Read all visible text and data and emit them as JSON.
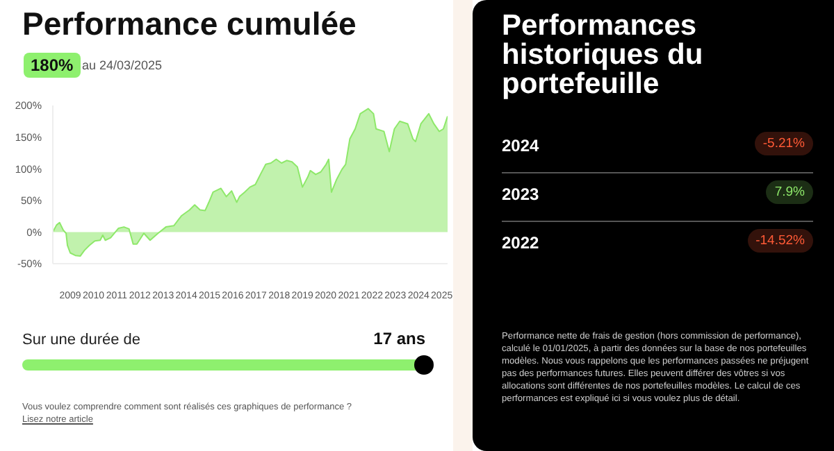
{
  "chart_data": [
    {
      "type": "area",
      "title": "Performance cumulée",
      "annotations": [
        "180%",
        "au 24/03/2025",
        "Sur une durée de",
        "17 ans",
        "Vous voulez comprendre comment sont réalisés ces graphiques de performance ?",
        "Lisez notre article"
      ],
      "x": [
        2008.25,
        2008.41,
        2008.54,
        2008.7,
        2008.82,
        2008.88,
        2009.0,
        2009.22,
        2009.43,
        2009.61,
        2009.83,
        2010.06,
        2010.29,
        2010.4,
        2010.51,
        2010.74,
        2011.08,
        2011.31,
        2011.53,
        2011.71,
        2011.87,
        2012.17,
        2012.44,
        2012.78,
        2013.12,
        2013.46,
        2013.8,
        2014.14,
        2014.36,
        2014.59,
        2014.81,
        2014.97,
        2015.15,
        2015.49,
        2015.72,
        2015.95,
        2016.17,
        2016.29,
        2016.51,
        2016.74,
        2016.97,
        2017.19,
        2017.42,
        2017.64,
        2017.87,
        2018.1,
        2018.32,
        2018.55,
        2018.78,
        2019.0,
        2019.23,
        2019.34,
        2019.57,
        2019.79,
        2020.02,
        2020.13,
        2020.25,
        2020.47,
        2020.7,
        2020.86,
        2021.04,
        2021.27,
        2021.49,
        2021.83,
        2022.06,
        2022.17,
        2022.51,
        2022.74,
        2022.96,
        2023.19,
        2023.53,
        2023.76,
        2023.87,
        2024.1,
        2024.44,
        2024.66,
        2024.89,
        2025.07,
        2025.25
      ],
      "series": [
        {
          "type": "area",
          "color": "#8ee86a",
          "values": [
            0,
            11,
            15,
            3,
            -2,
            -21,
            -33,
            -37,
            -38,
            -29,
            -21,
            -14,
            -13,
            -5,
            -13,
            -9,
            6,
            8,
            5,
            -19,
            -19,
            -2,
            -13,
            -2,
            8,
            10,
            26,
            35,
            43,
            35,
            34,
            47,
            63,
            69,
            56,
            65,
            47,
            56,
            63,
            71,
            75,
            91,
            107,
            109,
            115,
            109,
            113,
            111,
            103,
            71,
            87,
            97,
            91,
            95,
            107,
            115,
            63,
            83,
            99,
            107,
            147,
            163,
            187,
            195,
            187,
            163,
            159,
            127,
            163,
            175,
            171,
            147,
            143,
            171,
            187,
            171,
            159,
            163,
            183
          ]
        }
      ],
      "xlim": [
        2008.25,
        2025.25
      ],
      "xticks": [
        2009,
        2010,
        2011,
        2012,
        2013,
        2014,
        2015,
        2016,
        2017,
        2018,
        2019,
        2020,
        2021,
        2022,
        2023,
        2024,
        2025
      ],
      "ylim": [
        -50,
        200
      ],
      "yticks": [
        {
          "value": -50,
          "label": "-50%"
        },
        {
          "value": 0,
          "label": "0%"
        },
        {
          "value": 50,
          "label": "50%"
        },
        {
          "value": 100,
          "label": "100%"
        },
        {
          "value": 150,
          "label": "150%"
        },
        {
          "value": 200,
          "label": "200%"
        }
      ],
      "grid": false,
      "legend": false
    },
    {
      "type": "other",
      "title": "Performances historiques du portefeuille",
      "categories": [
        "2024",
        "2023",
        "2022"
      ],
      "values": [
        -5.21,
        7.9,
        -14.52
      ],
      "value_labels": [
        "-5.21%",
        "7.9%",
        "-14.52%"
      ],
      "annotations": [
        "Performance nette de frais de gestion (hors commission de performance), calculé le 01/01/2025, à partir des données sur la base de nos portefeuilles modèles. Nous vous rappelons que les performances passées ne préjugent pas des performances futures. Elles peuvent différer des vôtres si vos allocations sont différentes de nos portefeuilles modèles. Le calcul de ces performances est expliqué ici si vous voulez plus de détail."
      ]
    }
  ]
}
